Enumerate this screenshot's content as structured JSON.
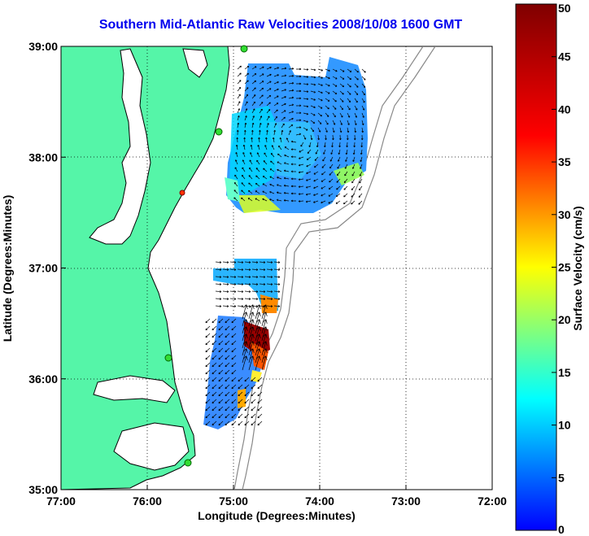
{
  "title": "Southern Mid-Atlantic Raw Velocities 2008/10/08 1600 GMT",
  "map": {
    "xlabel": "Longitude (Degrees:Minutes)",
    "ylabel": "Latitude (Degrees:Minutes)",
    "lon_range": [
      -77,
      -72
    ],
    "lat_range": [
      35,
      39
    ],
    "lon_ticks": [
      {
        "value": -77,
        "label": "77:00"
      },
      {
        "value": -76,
        "label": "76:00"
      },
      {
        "value": -75,
        "label": "75:00"
      },
      {
        "value": -74,
        "label": "74:00"
      },
      {
        "value": -73,
        "label": "73:00"
      },
      {
        "value": -72,
        "label": "72:00"
      }
    ],
    "lat_ticks": [
      {
        "value": 35,
        "label": "35:00"
      },
      {
        "value": 36,
        "label": "36:00"
      },
      {
        "value": 37,
        "label": "37:00"
      },
      {
        "value": 38,
        "label": "38:00"
      },
      {
        "value": 39,
        "label": "39:00"
      }
    ],
    "land_color": "#55f5a8",
    "grid": "dotted"
  },
  "colorbar": {
    "label": "Surface Velocity (cm/s)",
    "min": 0,
    "max": 50,
    "ticks": [
      {
        "value": 0,
        "label": "0"
      },
      {
        "value": 5,
        "label": "5"
      },
      {
        "value": 10,
        "label": "10"
      },
      {
        "value": 15,
        "label": "15"
      },
      {
        "value": 20,
        "label": "20"
      },
      {
        "value": 25,
        "label": "25"
      },
      {
        "value": 30,
        "label": "30"
      },
      {
        "value": 35,
        "label": "35"
      },
      {
        "value": 40,
        "label": "40"
      },
      {
        "value": 45,
        "label": "45"
      },
      {
        "value": 50,
        "label": "50"
      }
    ],
    "colormap": "jet"
  }
}
